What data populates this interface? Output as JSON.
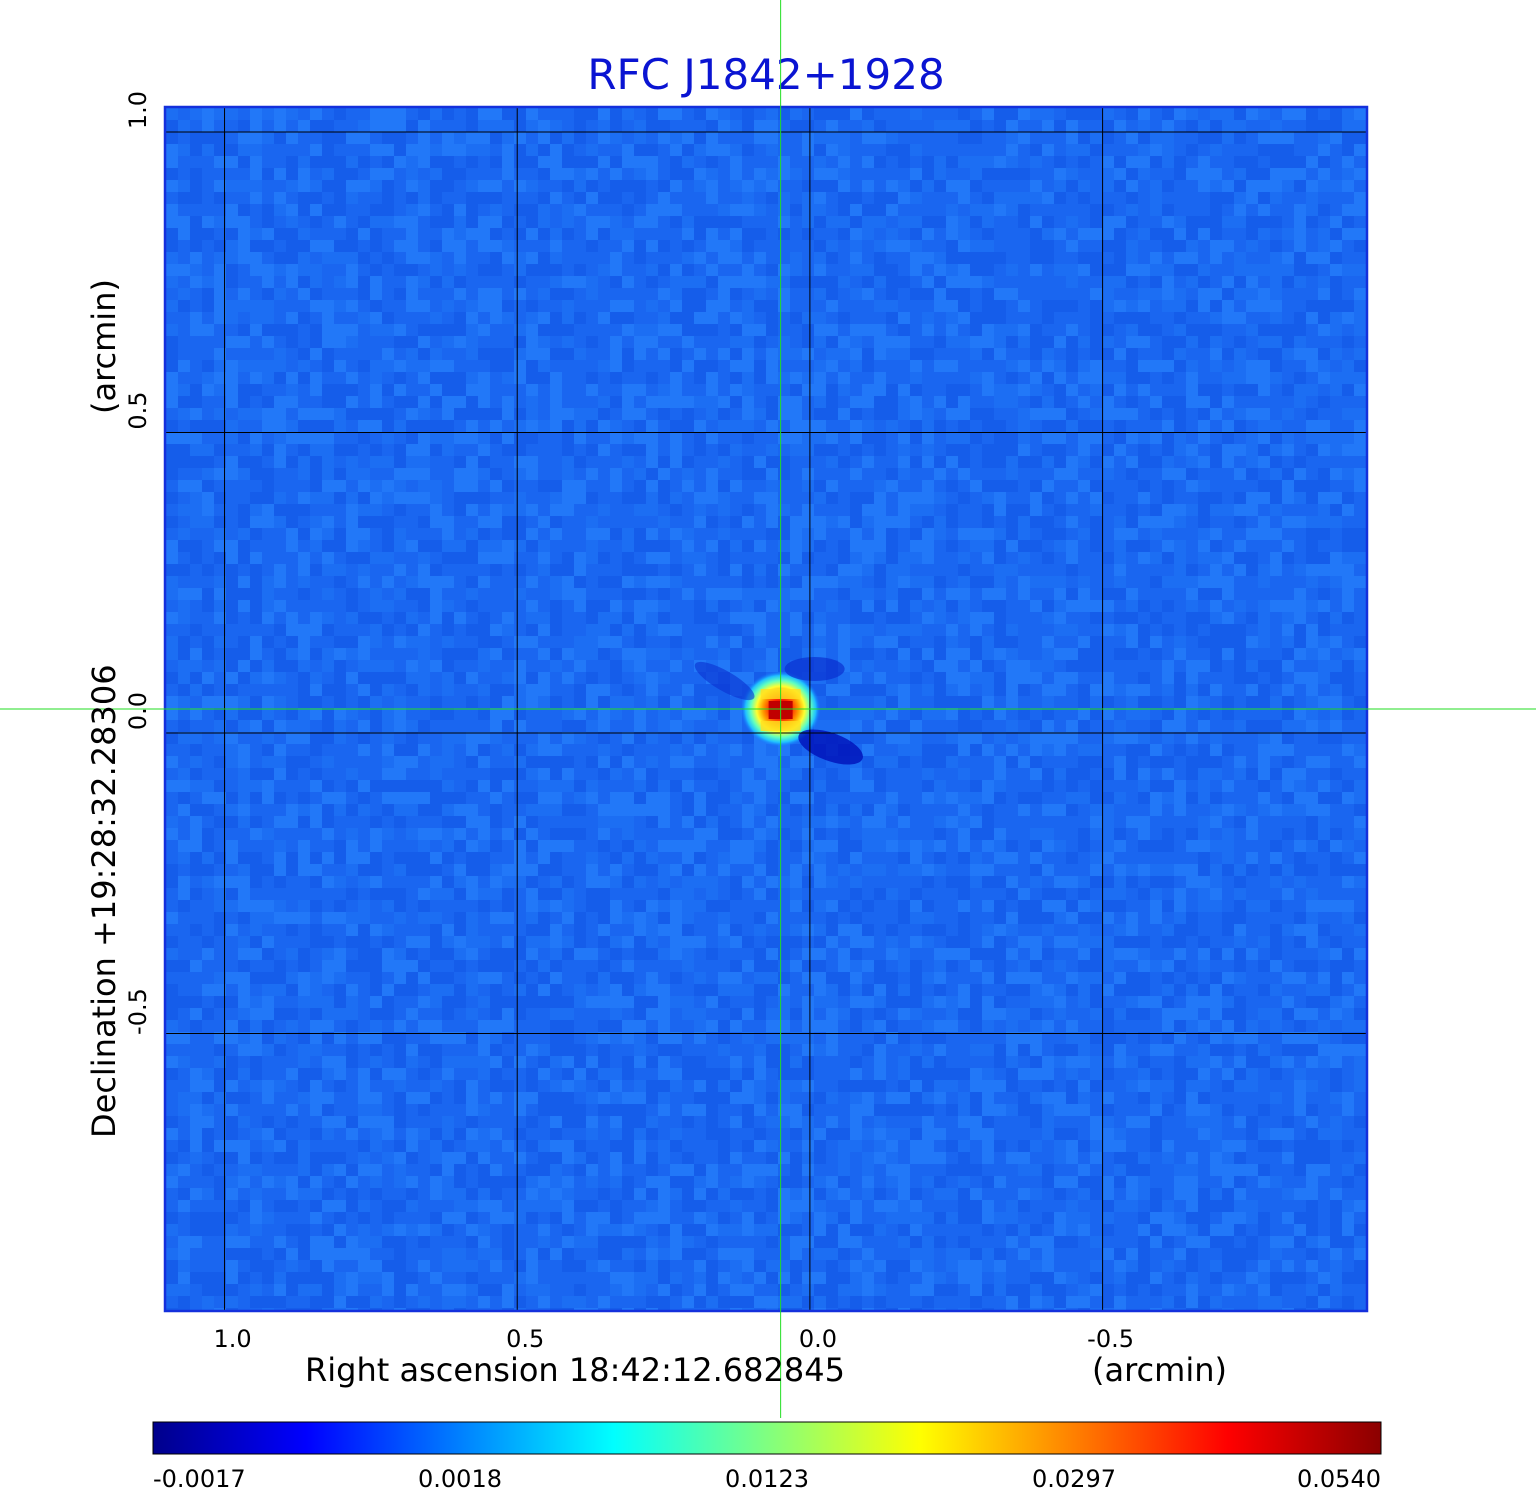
{
  "chart_data": {
    "type": "heatmap",
    "title": "RFC J1842+1928",
    "xlabel": "Right ascension  18:42:12.682845",
    "xunit": "(arcmin)",
    "ylabel": "Declination  +19:28:32.28306",
    "yunit": "(arcmin)",
    "xlim": [
      1.1,
      -0.95
    ],
    "ylim": [
      -0.96,
      1.04
    ],
    "grid": true,
    "x_ticks": [
      1.0,
      0.5,
      0.0,
      -0.5
    ],
    "x_tick_labels": [
      "1.0",
      "0.5",
      "0.0",
      "-0.5"
    ],
    "y_ticks": [
      1.0,
      0.5,
      0.0,
      -0.5
    ],
    "y_tick_labels": [
      "1.0",
      "0.5",
      "0.0",
      "-0.5"
    ],
    "crosshair": {
      "x": 0.05,
      "y": 0.04,
      "color": "#22dd22"
    },
    "source": {
      "x": 0.05,
      "y": 0.04,
      "peak": 0.054
    },
    "colormap": "jet",
    "colorbar": {
      "ticks": [
        "-0.0017",
        "0.0018",
        "0.0123",
        "0.0297",
        "0.0540"
      ],
      "colors": [
        "#00008b",
        "#0000ff",
        "#0080ff",
        "#00ffff",
        "#80ff80",
        "#ffff00",
        "#ff8000",
        "#ff0000",
        "#8b0000"
      ]
    },
    "title_color": "#0a14d2",
    "frame_color": "#1430dc"
  }
}
